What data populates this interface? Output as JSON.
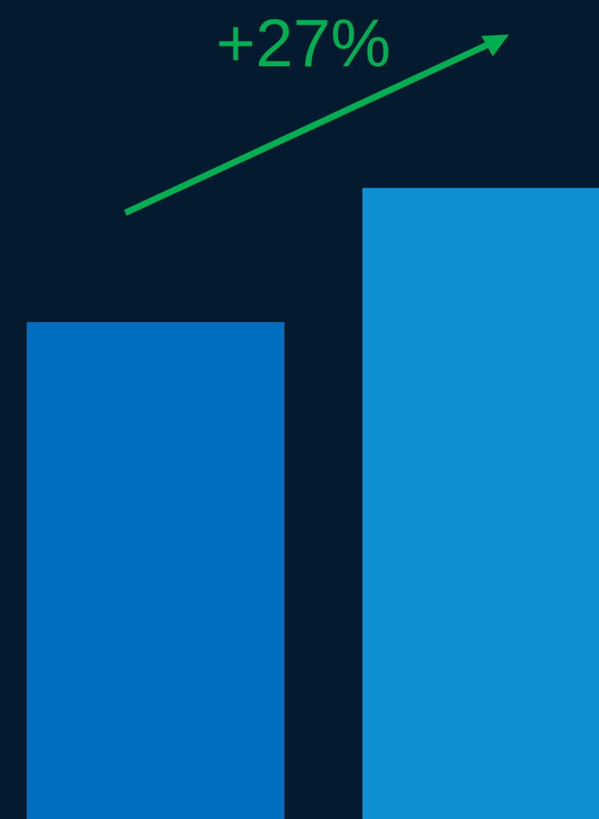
{
  "chart_data": {
    "type": "bar",
    "categories": [
      "",
      ""
    ],
    "values": [
      100,
      127
    ],
    "colors": [
      "#006ebe",
      "#0e90d4"
    ],
    "annotation": {
      "text": "+27%",
      "color": "#00b050",
      "shape": "arrow-up-right"
    },
    "background": "#041a2f",
    "grid": false,
    "axes_visible": false
  }
}
